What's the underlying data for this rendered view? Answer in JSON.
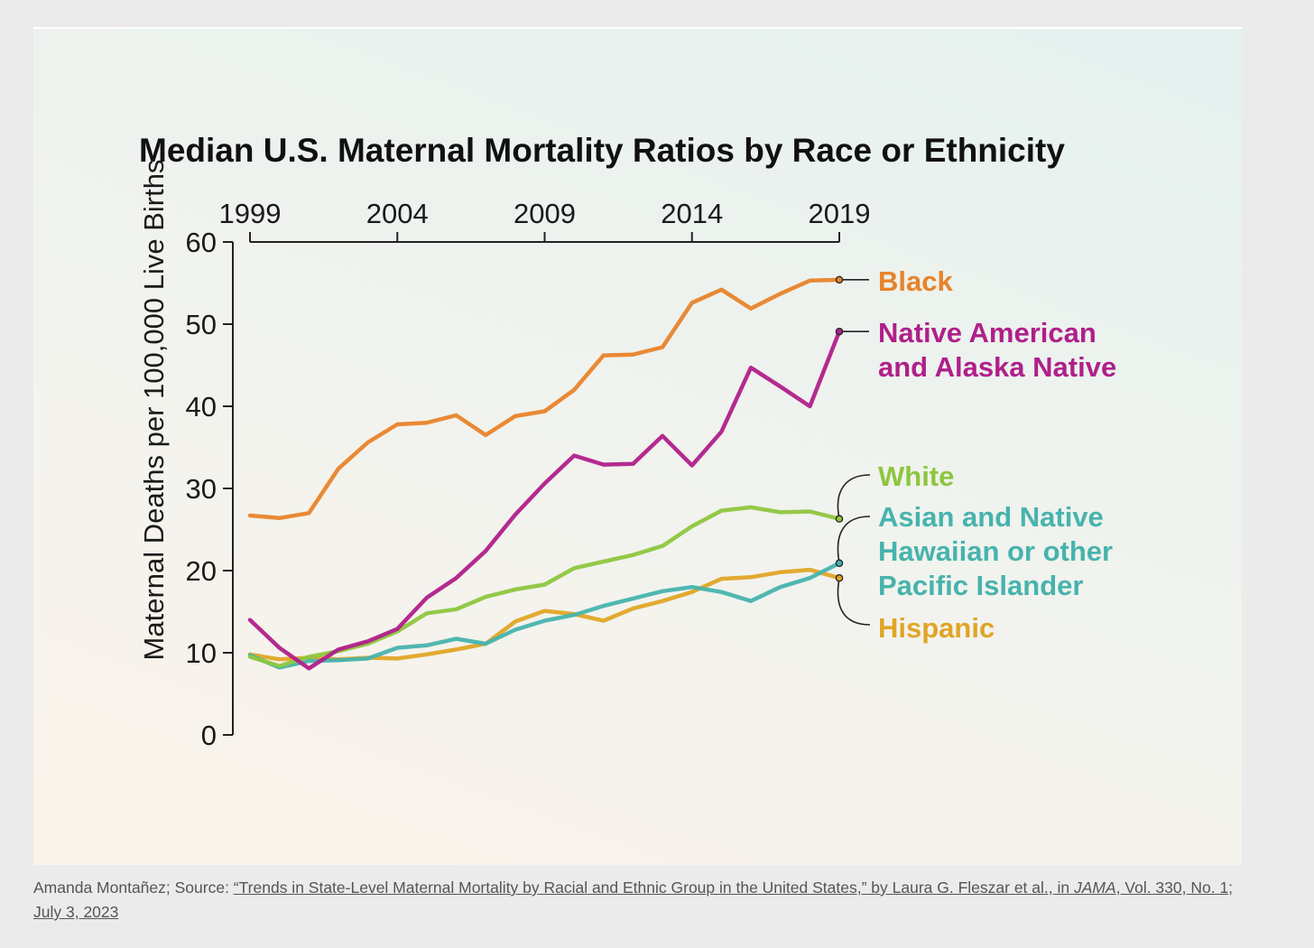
{
  "chart_data": {
    "type": "line",
    "title": "Median U.S. Maternal Mortality Ratios by Race or Ethnicity",
    "ylabel": "Maternal Deaths per 100,000 Live Births",
    "xlabel": "",
    "xlim": [
      1999,
      2019
    ],
    "ylim": [
      0,
      60
    ],
    "x_ticks": [
      "1999",
      "2004",
      "2009",
      "2014",
      "2019"
    ],
    "y_ticks": [
      "0",
      "10",
      "20",
      "30",
      "40",
      "50",
      "60"
    ],
    "x_axis_position": "top",
    "grid": false,
    "legend": "direct labels at right end of lines",
    "x": [
      1999,
      2000,
      2001,
      2002,
      2003,
      2004,
      2005,
      2006,
      2007,
      2008,
      2009,
      2010,
      2011,
      2012,
      2013,
      2014,
      2015,
      2016,
      2017,
      2018,
      2019
    ],
    "series": [
      {
        "name": "Black",
        "color": "#e8832a",
        "values": [
          26.7,
          26.4,
          27.0,
          32.4,
          35.6,
          37.8,
          38.0,
          38.9,
          36.5,
          38.8,
          39.4,
          42.0,
          46.2,
          46.3,
          47.2,
          52.6,
          54.2,
          51.9,
          53.7,
          55.3,
          55.4
        ]
      },
      {
        "name": "Native American and Alaska Native",
        "color": "#b01f8a",
        "values": [
          14.0,
          10.6,
          8.1,
          10.4,
          11.4,
          12.9,
          16.7,
          19.1,
          22.4,
          26.8,
          30.6,
          34.0,
          32.9,
          33.0,
          36.4,
          32.8,
          36.9,
          44.7,
          42.4,
          40.0,
          49.1
        ]
      },
      {
        "name": "White",
        "color": "#8dc63f",
        "values": [
          9.5,
          8.4,
          9.5,
          10.2,
          11.1,
          12.6,
          14.8,
          15.3,
          16.8,
          17.7,
          18.3,
          20.3,
          21.1,
          21.9,
          23.0,
          25.4,
          27.3,
          27.7,
          27.1,
          27.2,
          26.3
        ]
      },
      {
        "name": "Asian and Native Hawaiian or other Pacific Islander",
        "color": "#47b3ad",
        "values": [
          9.7,
          8.2,
          9.0,
          9.1,
          9.3,
          10.6,
          10.9,
          11.7,
          11.1,
          12.8,
          13.9,
          14.6,
          15.7,
          16.6,
          17.5,
          18.0,
          17.4,
          16.3,
          18.0,
          19.1,
          20.9
        ]
      },
      {
        "name": "Hispanic",
        "color": "#e0a526",
        "values": [
          9.8,
          9.2,
          9.4,
          9.2,
          9.4,
          9.3,
          9.8,
          10.4,
          11.1,
          13.8,
          15.1,
          14.7,
          13.9,
          15.4,
          16.3,
          17.4,
          19.0,
          19.2,
          19.8,
          20.1,
          19.1
        ]
      }
    ],
    "labels_text": {
      "black": "Black",
      "native_line1": "Native American",
      "native_line2": "and Alaska Native",
      "white": "White",
      "asian_line1": "Asian and Native",
      "asian_line2": "Hawaiian or other",
      "asian_line3": "Pacific Islander",
      "hispanic": "Hispanic"
    }
  },
  "caption": {
    "prefix": "Amanda Montañez; Source: ",
    "link_part1": "“Trends in State-Level Maternal Mortality by Racial and Ethnic Group in the United States,” by Laura G. Fleszar et al., in ",
    "journal": "JAMA",
    "link_part2": ", Vol. 330, No. 1; July 3, 2023"
  }
}
